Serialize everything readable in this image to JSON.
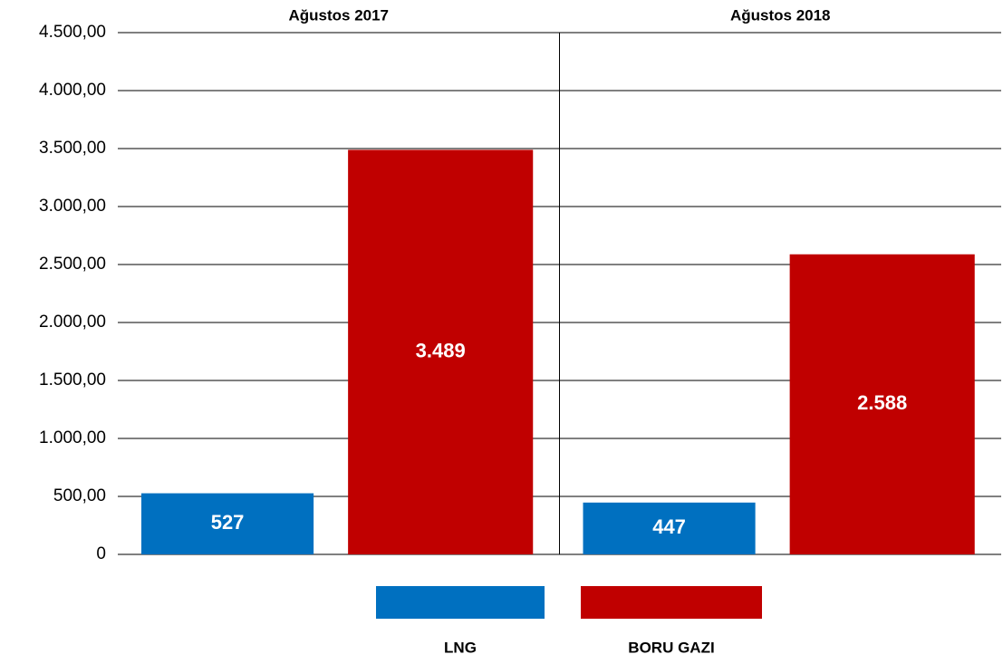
{
  "chart_data": {
    "type": "bar",
    "categories": [
      "Ağustos 2017",
      "Ağustos 2018"
    ],
    "series": [
      {
        "name": "LNG",
        "color": "#0070c0",
        "values": [
          527,
          447
        ],
        "value_labels": [
          "527",
          "447"
        ]
      },
      {
        "name": "BORU GAZI",
        "color": "#c00000",
        "values": [
          3489,
          2588
        ],
        "value_labels": [
          "3.489",
          "2.588"
        ]
      }
    ],
    "ylim": [
      0,
      4500
    ],
    "yticks": [
      0,
      {
        "value": 500,
        "label": "500,00"
      },
      {
        "value": 1000,
        "label": "1.000,00"
      },
      {
        "value": 1500,
        "label": "1.500,00"
      },
      {
        "value": 2000,
        "label": "2.000,00"
      },
      {
        "value": 2500,
        "label": "2.500,00"
      },
      {
        "value": 3000,
        "label": "3.000,00"
      },
      {
        "value": 3500,
        "label": "3.500,00"
      },
      {
        "value": 4000,
        "label": "4.000,00"
      },
      {
        "value": 4500,
        "label": "4.500,00"
      }
    ],
    "grid": true
  }
}
